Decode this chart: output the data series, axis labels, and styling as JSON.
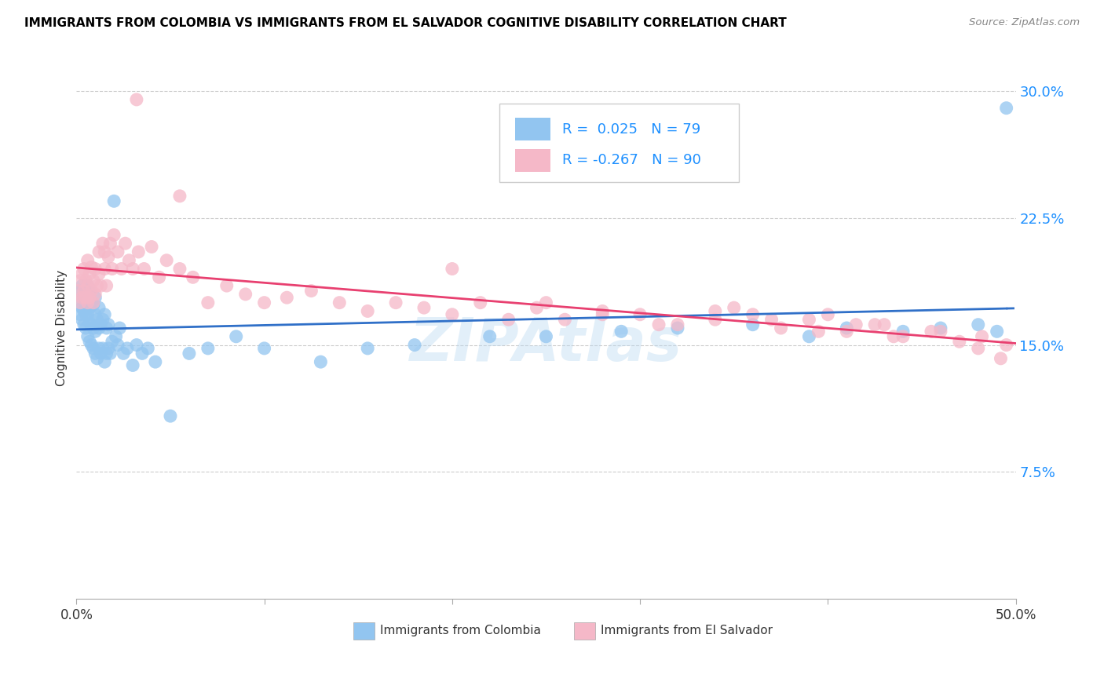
{
  "title": "IMMIGRANTS FROM COLOMBIA VS IMMIGRANTS FROM EL SALVADOR COGNITIVE DISABILITY CORRELATION CHART",
  "source": "Source: ZipAtlas.com",
  "ylabel": "Cognitive Disability",
  "yticks": [
    0.075,
    0.15,
    0.225,
    0.3
  ],
  "ytick_labels": [
    "7.5%",
    "15.0%",
    "22.5%",
    "30.0%"
  ],
  "legend_label1": "Immigrants from Colombia",
  "legend_label2": "Immigrants from El Salvador",
  "R1": "0.025",
  "N1": "79",
  "R2": "-0.267",
  "N2": "90",
  "color1": "#92C5F0",
  "color2": "#F5B8C8",
  "line_color1": "#3070C8",
  "line_color2": "#E84070",
  "watermark": "ZIPAtlas",
  "xlim": [
    0.0,
    0.5
  ],
  "ylim": [
    0.0,
    0.32
  ],
  "colombia_x": [
    0.001,
    0.002,
    0.002,
    0.003,
    0.003,
    0.003,
    0.004,
    0.004,
    0.004,
    0.005,
    0.005,
    0.005,
    0.005,
    0.006,
    0.006,
    0.006,
    0.006,
    0.007,
    0.007,
    0.007,
    0.007,
    0.008,
    0.008,
    0.008,
    0.009,
    0.009,
    0.009,
    0.01,
    0.01,
    0.01,
    0.01,
    0.011,
    0.011,
    0.012,
    0.012,
    0.012,
    0.013,
    0.013,
    0.014,
    0.014,
    0.015,
    0.015,
    0.016,
    0.016,
    0.017,
    0.017,
    0.018,
    0.019,
    0.02,
    0.021,
    0.022,
    0.023,
    0.025,
    0.027,
    0.03,
    0.032,
    0.035,
    0.038,
    0.042,
    0.05,
    0.06,
    0.07,
    0.085,
    0.1,
    0.13,
    0.155,
    0.18,
    0.22,
    0.25,
    0.29,
    0.32,
    0.36,
    0.39,
    0.41,
    0.44,
    0.46,
    0.48,
    0.49,
    0.495
  ],
  "colombia_y": [
    0.175,
    0.168,
    0.182,
    0.172,
    0.165,
    0.185,
    0.17,
    0.178,
    0.162,
    0.168,
    0.175,
    0.16,
    0.182,
    0.155,
    0.168,
    0.175,
    0.185,
    0.152,
    0.163,
    0.172,
    0.182,
    0.15,
    0.162,
    0.175,
    0.148,
    0.16,
    0.174,
    0.145,
    0.158,
    0.168,
    0.178,
    0.142,
    0.165,
    0.148,
    0.16,
    0.172,
    0.145,
    0.162,
    0.148,
    0.165,
    0.14,
    0.168,
    0.145,
    0.16,
    0.148,
    0.162,
    0.145,
    0.152,
    0.235,
    0.155,
    0.15,
    0.16,
    0.145,
    0.148,
    0.138,
    0.15,
    0.145,
    0.148,
    0.14,
    0.108,
    0.145,
    0.148,
    0.155,
    0.148,
    0.14,
    0.148,
    0.15,
    0.155,
    0.155,
    0.158,
    0.16,
    0.162,
    0.155,
    0.16,
    0.158,
    0.16,
    0.162,
    0.158,
    0.29
  ],
  "salvador_x": [
    0.001,
    0.002,
    0.002,
    0.003,
    0.003,
    0.004,
    0.004,
    0.005,
    0.005,
    0.006,
    0.006,
    0.006,
    0.007,
    0.007,
    0.008,
    0.008,
    0.009,
    0.009,
    0.01,
    0.01,
    0.011,
    0.012,
    0.012,
    0.013,
    0.014,
    0.015,
    0.015,
    0.016,
    0.017,
    0.018,
    0.019,
    0.02,
    0.022,
    0.024,
    0.026,
    0.028,
    0.03,
    0.033,
    0.036,
    0.04,
    0.044,
    0.048,
    0.055,
    0.062,
    0.07,
    0.08,
    0.09,
    0.1,
    0.112,
    0.125,
    0.14,
    0.155,
    0.17,
    0.185,
    0.2,
    0.215,
    0.23,
    0.245,
    0.26,
    0.28,
    0.3,
    0.32,
    0.34,
    0.36,
    0.375,
    0.39,
    0.41,
    0.425,
    0.44,
    0.455,
    0.47,
    0.482,
    0.495,
    0.032,
    0.055,
    0.2,
    0.35,
    0.4,
    0.43,
    0.46,
    0.48,
    0.492,
    0.25,
    0.28,
    0.31,
    0.34,
    0.37,
    0.395,
    0.415,
    0.435
  ],
  "salvador_y": [
    0.182,
    0.175,
    0.188,
    0.178,
    0.192,
    0.182,
    0.195,
    0.178,
    0.188,
    0.175,
    0.185,
    0.2,
    0.178,
    0.192,
    0.182,
    0.196,
    0.175,
    0.188,
    0.18,
    0.195,
    0.185,
    0.192,
    0.205,
    0.185,
    0.21,
    0.195,
    0.205,
    0.185,
    0.202,
    0.21,
    0.195,
    0.215,
    0.205,
    0.195,
    0.21,
    0.2,
    0.195,
    0.205,
    0.195,
    0.208,
    0.19,
    0.2,
    0.195,
    0.19,
    0.175,
    0.185,
    0.18,
    0.175,
    0.178,
    0.182,
    0.175,
    0.17,
    0.175,
    0.172,
    0.168,
    0.175,
    0.165,
    0.172,
    0.165,
    0.17,
    0.168,
    0.162,
    0.165,
    0.168,
    0.16,
    0.165,
    0.158,
    0.162,
    0.155,
    0.158,
    0.152,
    0.155,
    0.15,
    0.295,
    0.238,
    0.195,
    0.172,
    0.168,
    0.162,
    0.158,
    0.148,
    0.142,
    0.175,
    0.168,
    0.162,
    0.17,
    0.165,
    0.158,
    0.162,
    0.155
  ]
}
